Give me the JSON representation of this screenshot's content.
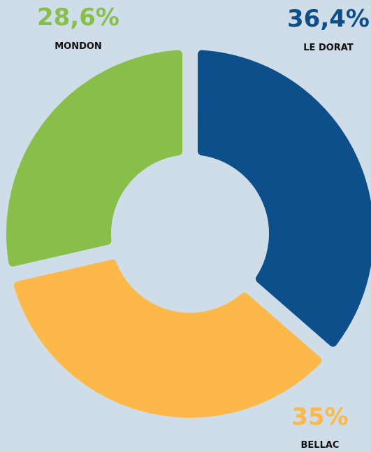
{
  "chart_data": {
    "type": "donut",
    "categories": [
      "LE DORAT",
      "BELLAC",
      "MONDON"
    ],
    "values": [
      36.4,
      35,
      28.6
    ],
    "value_labels": [
      "36,4%",
      "35%",
      "28,6%"
    ],
    "colors": [
      "#0d4f8b",
      "#fdb84a",
      "#88bf4a"
    ]
  }
}
